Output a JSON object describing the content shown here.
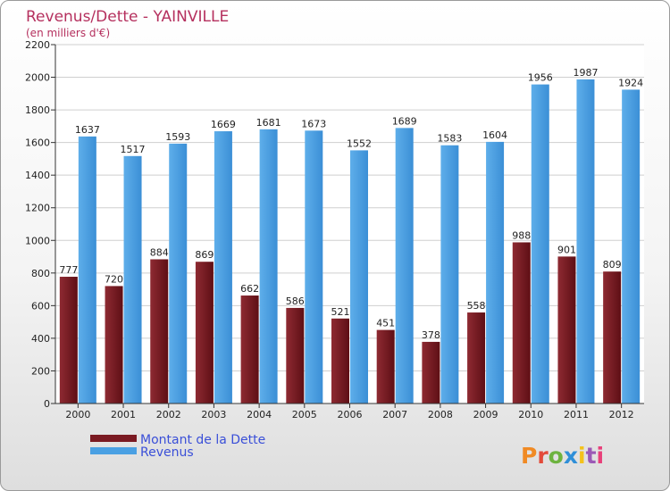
{
  "chart_data": {
    "type": "bar",
    "title": "Revenus/Dette - YAINVILLE",
    "subtitle": "(en milliers d'€)",
    "categories": [
      "2000",
      "2001",
      "2002",
      "2003",
      "2004",
      "2005",
      "2006",
      "2007",
      "2008",
      "2009",
      "2010",
      "2011",
      "2012"
    ],
    "series": [
      {
        "name": "Montant de la Dette",
        "color": "#7a1a22",
        "values": [
          777,
          720,
          884,
          869,
          662,
          586,
          521,
          451,
          378,
          558,
          988,
          901,
          809
        ]
      },
      {
        "name": "Revenus",
        "color": "#4aa0e3",
        "values": [
          1637,
          1517,
          1593,
          1669,
          1681,
          1673,
          1552,
          1689,
          1583,
          1604,
          1956,
          1987,
          1924
        ]
      }
    ],
    "yticks": [
      0,
      200,
      400,
      600,
      800,
      1000,
      1200,
      1400,
      1600,
      1800,
      2000,
      2200
    ],
    "ylim": [
      0,
      2200
    ],
    "grid": true,
    "legend_position": "bottom-left"
  },
  "brand": {
    "logo_text": "Proxiti",
    "logo_colors": [
      "#f08a24",
      "#e34b3a",
      "#6db33f",
      "#2f8fd8",
      "#f4c21b",
      "#9b59b6",
      "#e8407a"
    ]
  }
}
